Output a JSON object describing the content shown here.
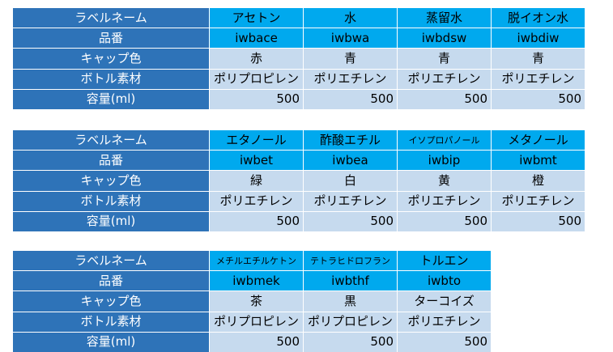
{
  "row_labels": [
    "ラベルネーム",
    "品番",
    "キャップ色",
    "ボトル素材",
    "容量(ml)"
  ],
  "tables": [
    {
      "columns": [
        {
          "label_name": "アセトン",
          "part_no": "iwbace",
          "cap_color": "赤",
          "material": "ポリプロピレン",
          "volume": "500"
        },
        {
          "label_name": "水",
          "part_no": "iwbwa",
          "cap_color": "青",
          "material": "ポリエチレン",
          "volume": "500"
        },
        {
          "label_name": "蒸留水",
          "part_no": "iwbdsw",
          "cap_color": "青",
          "material": "ポリエチレン",
          "volume": "500"
        },
        {
          "label_name": "脱イオン水",
          "part_no": "iwbdiw",
          "cap_color": "青",
          "material": "ポリエチレン",
          "volume": "500"
        }
      ]
    },
    {
      "columns": [
        {
          "label_name": "エタノール",
          "part_no": "iwbet",
          "cap_color": "緑",
          "material": "ポリエチレン",
          "volume": "500"
        },
        {
          "label_name": "酢酸エチル",
          "part_no": "iwbea",
          "cap_color": "白",
          "material": "ポリエチレン",
          "volume": "500"
        },
        {
          "label_name": "イソプロパノール",
          "part_no": "iwbip",
          "cap_color": "黄",
          "material": "ポリエチレン",
          "volume": "500"
        },
        {
          "label_name": "メタノール",
          "part_no": "iwbmt",
          "cap_color": "橙",
          "material": "ポリエチレン",
          "volume": "500"
        }
      ]
    },
    {
      "columns": [
        {
          "label_name": "メチルエチルケトン",
          "part_no": "iwbmek",
          "cap_color": "茶",
          "material": "ポリプロピレン",
          "volume": "500"
        },
        {
          "label_name": "テトラヒドロフラン",
          "part_no": "iwbthf",
          "cap_color": "黒",
          "material": "ポリプロピレン",
          "volume": "500"
        },
        {
          "label_name": "トルエン",
          "part_no": "iwbto",
          "cap_color": "ターコイズ",
          "material": "ポリエチレン",
          "volume": "500"
        }
      ]
    }
  ]
}
